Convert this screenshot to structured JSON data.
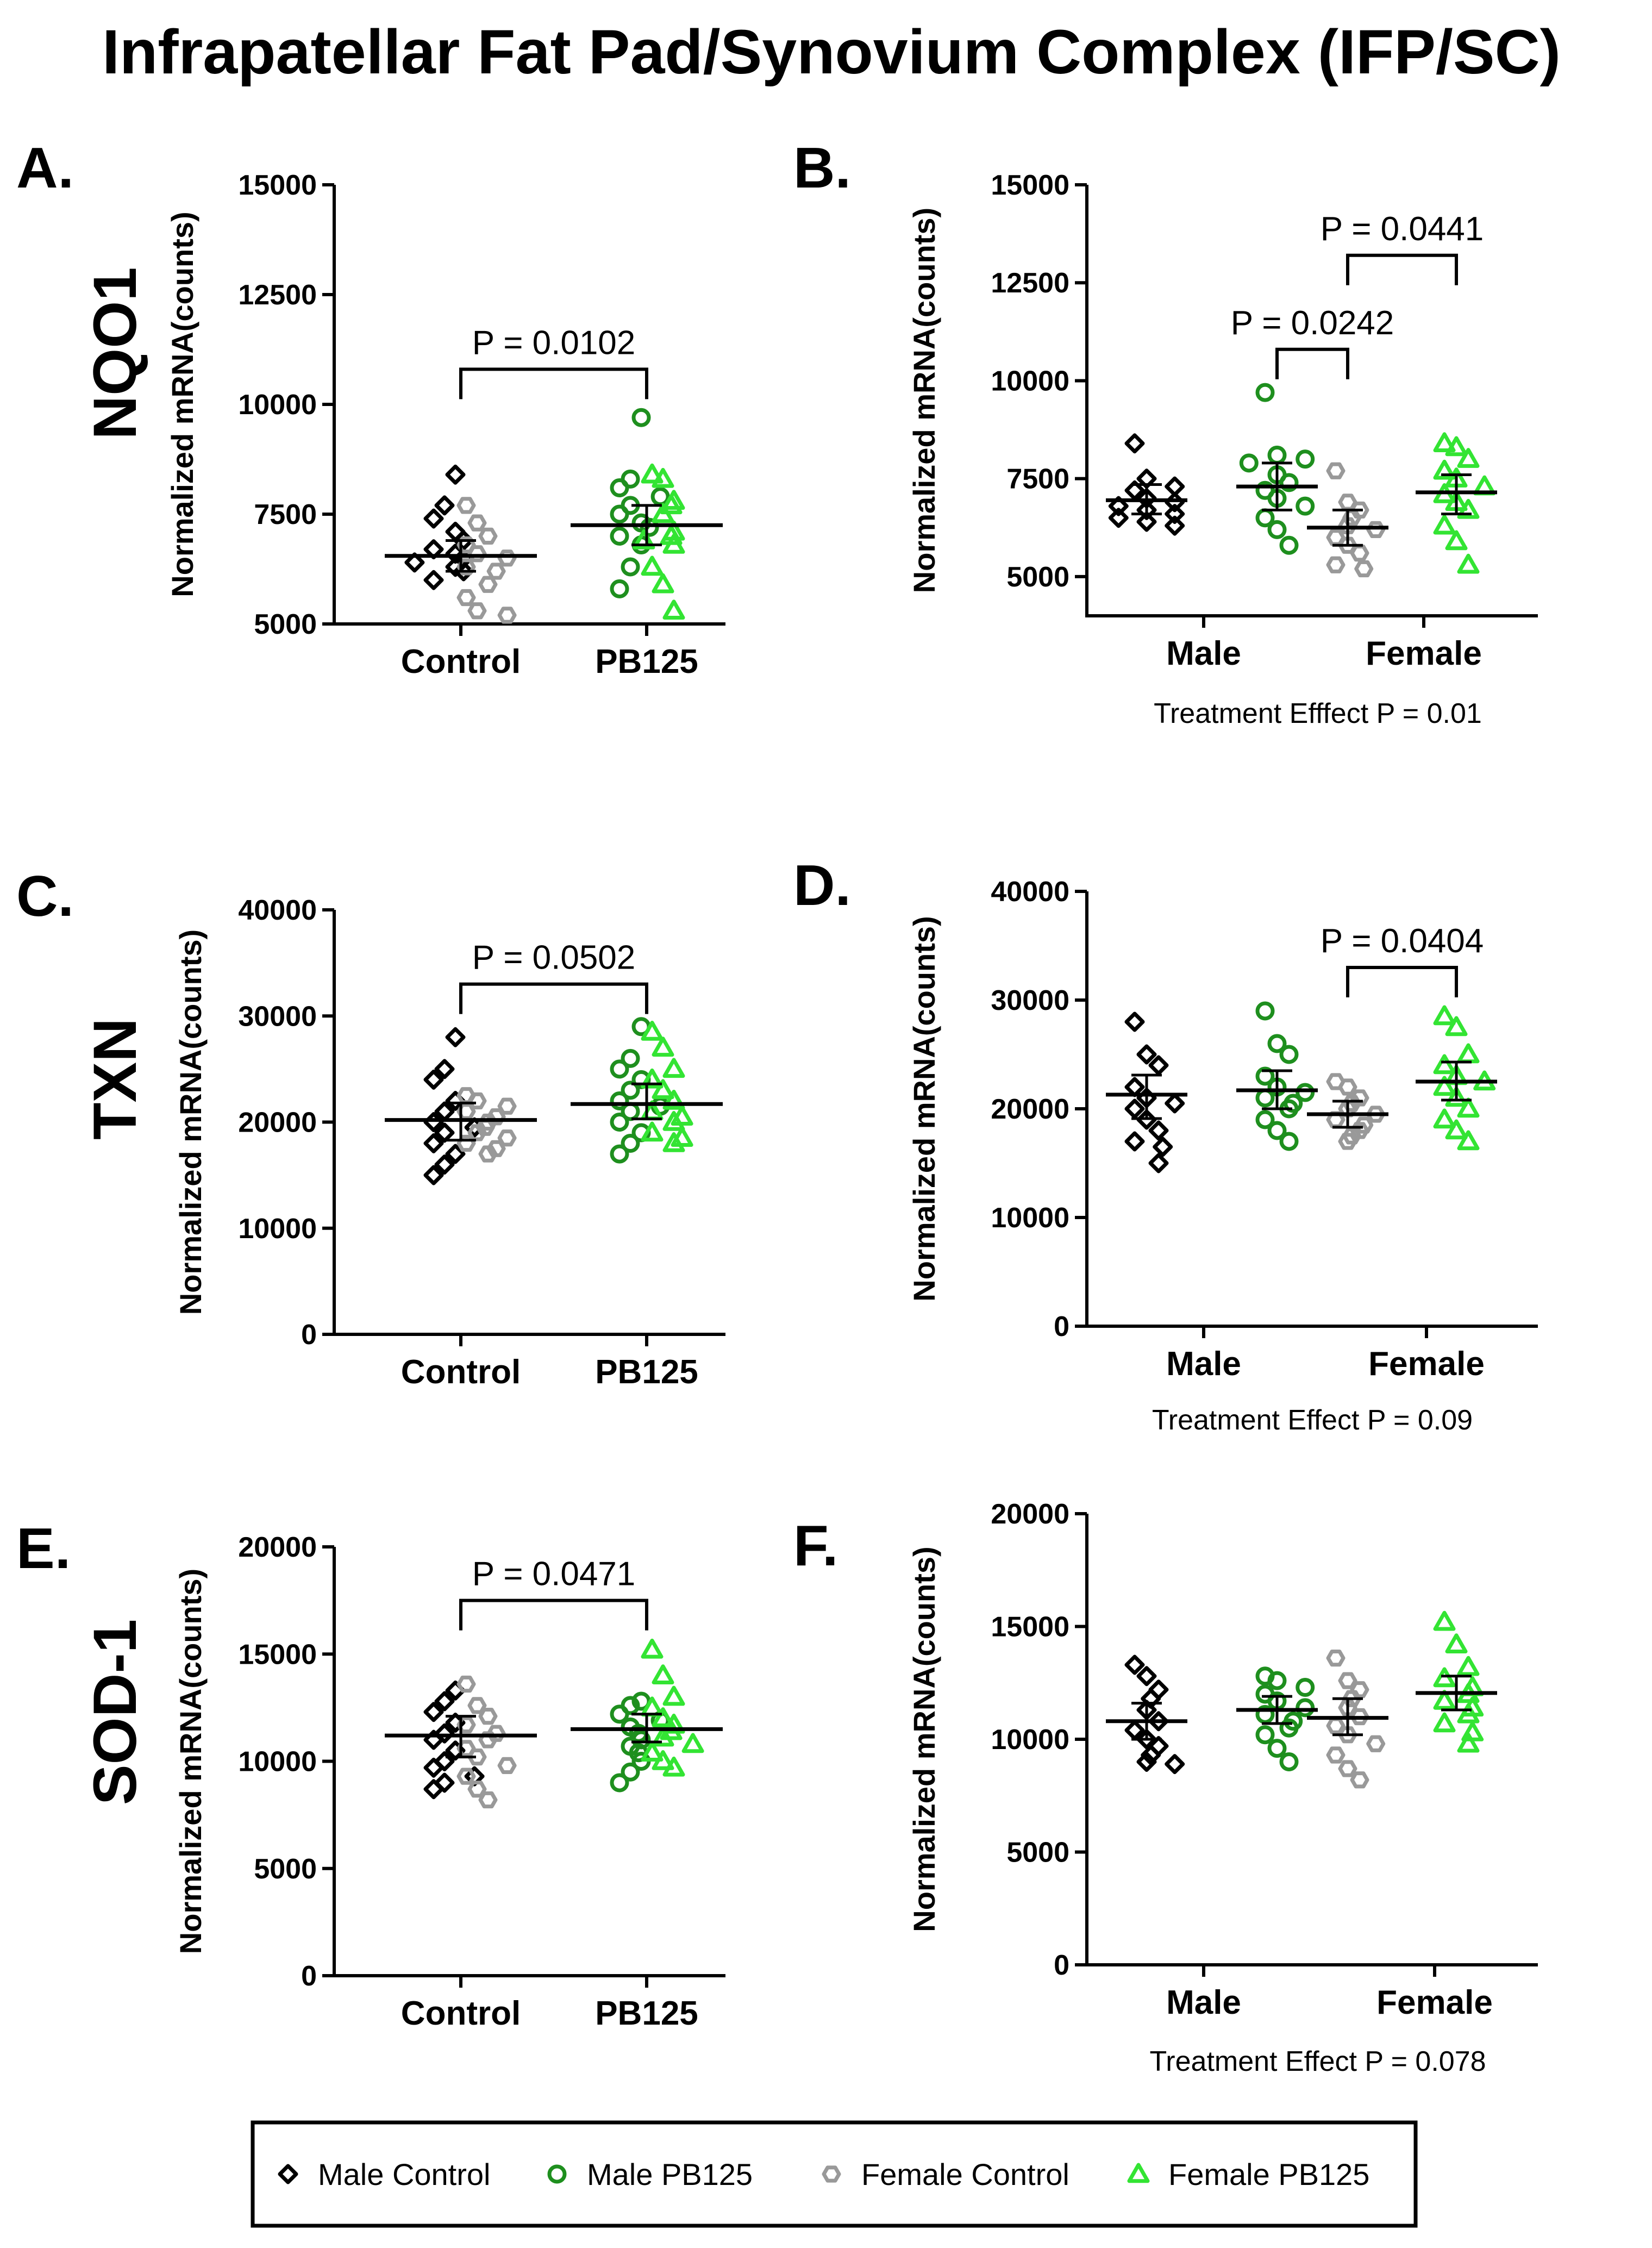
{
  "figure_title": "Infrapatellar Fat Pad/Synovium Complex (IFP/SC)",
  "colors": {
    "male_control": "#000000",
    "male_pb125": "#1e8f1e",
    "female_control": "#999999",
    "female_pb125": "#33e433"
  },
  "legend": [
    {
      "label": "Male Control",
      "marker": "diamond",
      "color_key": "male_control"
    },
    {
      "label": "Male PB125",
      "marker": "circle",
      "color_key": "male_pb125"
    },
    {
      "label": "Female Control",
      "marker": "hexagon",
      "color_key": "female_control"
    },
    {
      "label": "Female PB125",
      "marker": "triangle",
      "color_key": "female_pb125"
    }
  ],
  "chart_data": [
    {
      "panel": "A.",
      "gene": "NQO1",
      "type": "scatter",
      "ylabel": "Normalized mRNA(counts)",
      "ylim": [
        5000,
        15000
      ],
      "yticks": [
        5000,
        7500,
        10000,
        12500,
        15000
      ],
      "categories": [
        "Control",
        "PB125"
      ],
      "series": [
        {
          "group": "male_control",
          "cat": 0,
          "marker": "diamond",
          "values": [
            8400,
            7700,
            7400,
            7100,
            6900,
            6700,
            6600,
            6500,
            6400,
            6300,
            6200,
            6000
          ]
        },
        {
          "group": "female_control",
          "cat": 0,
          "marker": "hexagon",
          "values": [
            7700,
            7300,
            7000,
            6800,
            6600,
            6500,
            6300,
            6200,
            5900,
            5600,
            5300,
            5200
          ]
        },
        {
          "group": "male_pb125",
          "cat": 1,
          "marker": "circle",
          "values": [
            9700,
            8300,
            8100,
            7900,
            7700,
            7500,
            7300,
            7200,
            7000,
            6800,
            6300,
            5800
          ]
        },
        {
          "group": "female_pb125",
          "cat": 1,
          "marker": "triangle",
          "values": [
            8400,
            8300,
            7800,
            7700,
            7500,
            7100,
            7000,
            6900,
            6800,
            6300,
            5900,
            5300
          ]
        }
      ],
      "means": [
        6550,
        7250
      ],
      "errors": [
        [
          6200,
          6900
        ],
        [
          6800,
          7700
        ]
      ],
      "brackets": [
        {
          "from": 0,
          "to": 1,
          "y": 10800,
          "label": "P = 0.0102"
        }
      ],
      "footnote": ""
    },
    {
      "panel": "B.",
      "gene": "",
      "type": "scatter",
      "ylabel": "Normalized mRNA(counts)",
      "ylim": [
        4000,
        15000
      ],
      "yticks": [
        5000,
        7500,
        10000,
        12500,
        15000
      ],
      "categories": [
        "Male",
        "Female"
      ],
      "groups": [
        "male_control",
        "male_pb125",
        "female_control",
        "female_pb125"
      ],
      "series": [
        {
          "group": "male_control",
          "cat": 0,
          "marker": "diamond",
          "values": [
            8400,
            7500,
            7300,
            7200,
            7000,
            6900,
            6800,
            6700,
            6600,
            6500,
            6400,
            6300
          ]
        },
        {
          "group": "male_pb125",
          "cat": 1,
          "marker": "circle",
          "values": [
            9700,
            8100,
            8000,
            7900,
            7600,
            7400,
            7200,
            7000,
            6800,
            6500,
            6200,
            5800
          ]
        },
        {
          "group": "female_control",
          "cat": 2,
          "marker": "hexagon",
          "values": [
            7700,
            6900,
            6700,
            6500,
            6300,
            6200,
            6000,
            5800,
            5600,
            5300,
            5200
          ]
        },
        {
          "group": "female_pb125",
          "cat": 3,
          "marker": "triangle",
          "values": [
            8400,
            8300,
            8000,
            7700,
            7500,
            7300,
            7100,
            6900,
            6700,
            6300,
            5900,
            5300
          ]
        }
      ],
      "means": [
        6950,
        7300,
        6250,
        7150
      ],
      "errors": [
        [
          6600,
          7350
        ],
        [
          6700,
          7900
        ],
        [
          5800,
          6700
        ],
        [
          6600,
          7600
        ]
      ],
      "brackets": [
        {
          "from": 1,
          "to": 2,
          "y": 10800,
          "label": "P = 0.0242"
        },
        {
          "from": 2,
          "to": 3,
          "y": 13200,
          "label": "P = 0.0441"
        }
      ],
      "footnote": "Treatment Efffect P = 0.01"
    },
    {
      "panel": "C.",
      "gene": "TXN",
      "type": "scatter",
      "ylabel": "Normalized mRNA(counts)",
      "ylim": [
        0,
        40000
      ],
      "yticks": [
        0,
        10000,
        20000,
        30000,
        40000
      ],
      "categories": [
        "Control",
        "PB125"
      ],
      "series": [
        {
          "group": "male_control",
          "cat": 0,
          "marker": "diamond",
          "values": [
            28000,
            25000,
            24000,
            22000,
            21000,
            20000,
            19500,
            19000,
            18000,
            17000,
            16000,
            15000
          ]
        },
        {
          "group": "female_control",
          "cat": 0,
          "marker": "hexagon",
          "values": [
            22500,
            22000,
            21500,
            21000,
            20500,
            20000,
            19500,
            19000,
            18500,
            18000,
            17500,
            17000
          ]
        },
        {
          "group": "male_pb125",
          "cat": 1,
          "marker": "circle",
          "values": [
            29000,
            26000,
            25000,
            24000,
            23000,
            22000,
            21500,
            21000,
            20000,
            19000,
            18000,
            17000
          ]
        },
        {
          "group": "female_pb125",
          "cat": 1,
          "marker": "triangle",
          "values": [
            28500,
            27000,
            25000,
            24000,
            23000,
            22000,
            21000,
            20500,
            20000,
            19000,
            18500,
            18000
          ]
        }
      ],
      "means": [
        20200,
        21700
      ],
      "errors": [
        [
          18300,
          21800
        ],
        [
          20300,
          23600
        ]
      ],
      "brackets": [
        {
          "from": 0,
          "to": 1,
          "y": 33000,
          "label": "P = 0.0502"
        }
      ],
      "footnote": ""
    },
    {
      "panel": "D.",
      "gene": "",
      "type": "scatter",
      "ylabel": "Normalized mRNA(counts)",
      "ylim": [
        0,
        40000
      ],
      "yticks": [
        0,
        10000,
        20000,
        30000,
        40000
      ],
      "categories": [
        "Male",
        "Female"
      ],
      "groups": [
        "male_control",
        "male_pb125",
        "female_control",
        "female_pb125"
      ],
      "series": [
        {
          "group": "male_control",
          "cat": 0,
          "marker": "diamond",
          "values": [
            28000,
            25000,
            24000,
            22000,
            21000,
            20500,
            20000,
            19000,
            18000,
            17000,
            16500,
            15000
          ]
        },
        {
          "group": "male_pb125",
          "cat": 1,
          "marker": "circle",
          "values": [
            29000,
            26000,
            25000,
            23000,
            22000,
            21500,
            21000,
            20500,
            20000,
            19000,
            18000,
            17000
          ]
        },
        {
          "group": "female_control",
          "cat": 2,
          "marker": "hexagon",
          "values": [
            22500,
            22000,
            21000,
            20500,
            20000,
            19500,
            19000,
            18500,
            18000,
            17500,
            17000
          ]
        },
        {
          "group": "female_pb125",
          "cat": 3,
          "marker": "triangle",
          "values": [
            28500,
            27500,
            25000,
            24000,
            23000,
            22500,
            22000,
            21000,
            20000,
            19000,
            18000,
            17000
          ]
        }
      ],
      "means": [
        21300,
        21700,
        19500,
        22500
      ],
      "errors": [
        [
          19100,
          23100
        ],
        [
          20000,
          23500
        ],
        [
          18300,
          20700
        ],
        [
          20800,
          24300
        ]
      ],
      "brackets": [
        {
          "from": 2,
          "to": 3,
          "y": 33000,
          "label": "P = 0.0404"
        }
      ],
      "footnote": "Treatment Effect  P = 0.09"
    },
    {
      "panel": "E.",
      "gene": "SOD-1",
      "type": "scatter",
      "ylabel": "Normalized mRNA(counts)",
      "ylim": [
        0,
        20000
      ],
      "yticks": [
        0,
        5000,
        10000,
        15000,
        20000
      ],
      "categories": [
        "Control",
        "PB125"
      ],
      "series": [
        {
          "group": "male_control",
          "cat": 0,
          "marker": "diamond",
          "values": [
            13300,
            12800,
            12300,
            11800,
            11300,
            11000,
            10500,
            10000,
            9700,
            9300,
            9000,
            8700
          ]
        },
        {
          "group": "female_control",
          "cat": 0,
          "marker": "hexagon",
          "values": [
            13600,
            12600,
            12100,
            11700,
            11300,
            11000,
            10600,
            10200,
            9800,
            9300,
            8700,
            8200
          ]
        },
        {
          "group": "male_pb125",
          "cat": 1,
          "marker": "circle",
          "values": [
            12800,
            12600,
            12200,
            11900,
            11600,
            11300,
            11000,
            10700,
            10400,
            10000,
            9500,
            9000
          ]
        },
        {
          "group": "female_pb125",
          "cat": 1,
          "marker": "triangle",
          "values": [
            15200,
            14000,
            13000,
            12500,
            12000,
            11700,
            11400,
            11100,
            10800,
            10400,
            10000,
            9700
          ]
        }
      ],
      "means": [
        11200,
        11500
      ],
      "errors": [
        [
          10200,
          12100
        ],
        [
          10900,
          12200
        ]
      ],
      "brackets": [
        {
          "from": 0,
          "to": 1,
          "y": 17500,
          "label": "P = 0.0471"
        }
      ],
      "footnote": ""
    },
    {
      "panel": "F.",
      "gene": "",
      "type": "scatter",
      "ylabel": "Normalized mRNA(counts)",
      "ylim": [
        0,
        20000
      ],
      "yticks": [
        0,
        5000,
        10000,
        15000,
        20000
      ],
      "categories": [
        "Male",
        "Female"
      ],
      "groups": [
        "male_control",
        "male_pb125",
        "female_control",
        "female_pb125"
      ],
      "series": [
        {
          "group": "male_control",
          "cat": 0,
          "marker": "diamond",
          "values": [
            13300,
            12800,
            12200,
            11800,
            11300,
            10800,
            10400,
            10000,
            9700,
            9300,
            9000,
            8900
          ]
        },
        {
          "group": "male_pb125",
          "cat": 1,
          "marker": "circle",
          "values": [
            12800,
            12600,
            12300,
            12000,
            11700,
            11400,
            11100,
            10800,
            10500,
            10200,
            9600,
            9000
          ]
        },
        {
          "group": "female_control",
          "cat": 2,
          "marker": "hexagon",
          "values": [
            13600,
            12600,
            12200,
            11800,
            11400,
            11000,
            10600,
            10200,
            9800,
            9300,
            8700,
            8200
          ]
        },
        {
          "group": "female_pb125",
          "cat": 3,
          "marker": "triangle",
          "values": [
            15200,
            14200,
            13200,
            12700,
            12300,
            12000,
            11700,
            11400,
            11100,
            10700,
            10300,
            9800
          ]
        }
      ],
      "means": [
        10800,
        11300,
        10950,
        12050
      ],
      "errors": [
        [
          10000,
          11600
        ],
        [
          10700,
          11900
        ],
        [
          10200,
          11800
        ],
        [
          11300,
          12800
        ]
      ],
      "brackets": [],
      "footnote": "Treatment Effect P = 0.078"
    }
  ]
}
